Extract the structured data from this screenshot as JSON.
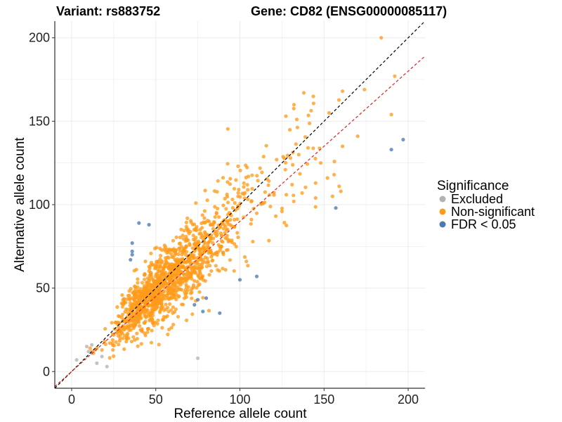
{
  "header": {
    "variant_label": "Variant: rs883752",
    "gene_label": "Gene: CD82 (ENSG00000085117)"
  },
  "colors": {
    "excluded": "#B3B3B3",
    "non_significant": "#FF9B1A",
    "significant": "#4A7AB0",
    "identity_line": "#000000",
    "fit_line": "#E02020",
    "grid": "#EBEBEB"
  },
  "chart_data": {
    "type": "scatter",
    "title": "",
    "xlabel": "Reference allele count",
    "ylabel": "Alternative allele count",
    "xlim": [
      -10,
      210
    ],
    "ylim": [
      -10,
      210
    ],
    "xticks": [
      0,
      50,
      100,
      150,
      200
    ],
    "yticks": [
      0,
      50,
      100,
      150,
      200
    ],
    "grid": true,
    "legend": {
      "title": "Significance",
      "position": "right",
      "entries": [
        "Excluded",
        "Non-significant",
        "FDR < 0.05"
      ]
    },
    "reference_lines": [
      {
        "style": "dashed",
        "color": "#000000",
        "slope": 1.0,
        "intercept": 0
      },
      {
        "style": "dashed",
        "color": "#E02020",
        "slope": 0.9,
        "intercept": 0
      }
    ],
    "series": [
      {
        "name": "Excluded",
        "color": "#B3B3B3",
        "points": [
          [
            3,
            7
          ],
          [
            9,
            15
          ],
          [
            12,
            11
          ],
          [
            15,
            5
          ],
          [
            18,
            9
          ],
          [
            21,
            3
          ],
          [
            75,
            8
          ],
          [
            12,
            16
          ],
          [
            10,
            12
          ]
        ]
      },
      {
        "name": "FDR < 0.05",
        "color": "#4A7AB0",
        "points": [
          [
            40,
            89
          ],
          [
            46,
            88
          ],
          [
            36,
            77
          ],
          [
            36,
            72
          ],
          [
            36,
            70
          ],
          [
            35,
            67
          ],
          [
            73,
            40
          ],
          [
            75,
            43
          ],
          [
            80,
            44
          ],
          [
            78,
            36
          ],
          [
            88,
            35
          ],
          [
            100,
            55
          ],
          [
            110,
            57
          ],
          [
            157,
            98
          ],
          [
            190,
            133
          ],
          [
            197,
            139
          ]
        ]
      },
      {
        "name": "Non-significant",
        "color": "#FF9B1A",
        "random_cloud": {
          "n": 1300,
          "x_distribution": "log-normal, median ~ 58",
          "y_relation": "y ~ 0.96*x + noise (sd ~ 12% of x + 4)",
          "x_range": [
            8,
            160
          ],
          "seed": 883752
        },
        "points": [
          [
            184,
            200
          ],
          [
            192,
            177
          ],
          [
            174,
            169
          ],
          [
            161,
            168
          ],
          [
            138,
            167
          ],
          [
            153,
            155
          ],
          [
            190,
            154
          ],
          [
            170,
            141
          ],
          [
            161,
            135
          ],
          [
            135,
            130
          ],
          [
            130,
            128
          ],
          [
            148,
            125
          ],
          [
            127,
            121
          ],
          [
            156,
            118
          ],
          [
            152,
            116
          ],
          [
            159,
            111
          ],
          [
            131,
            112
          ],
          [
            145,
            113
          ],
          [
            137,
            107
          ],
          [
            155,
            105
          ],
          [
            160,
            108
          ],
          [
            132,
            102
          ],
          [
            125,
            96
          ],
          [
            145,
            104
          ],
          [
            12,
            12
          ],
          [
            14,
            13
          ],
          [
            11,
            14
          ],
          [
            13,
            11
          ],
          [
            15,
            14
          ]
        ]
      }
    ]
  }
}
